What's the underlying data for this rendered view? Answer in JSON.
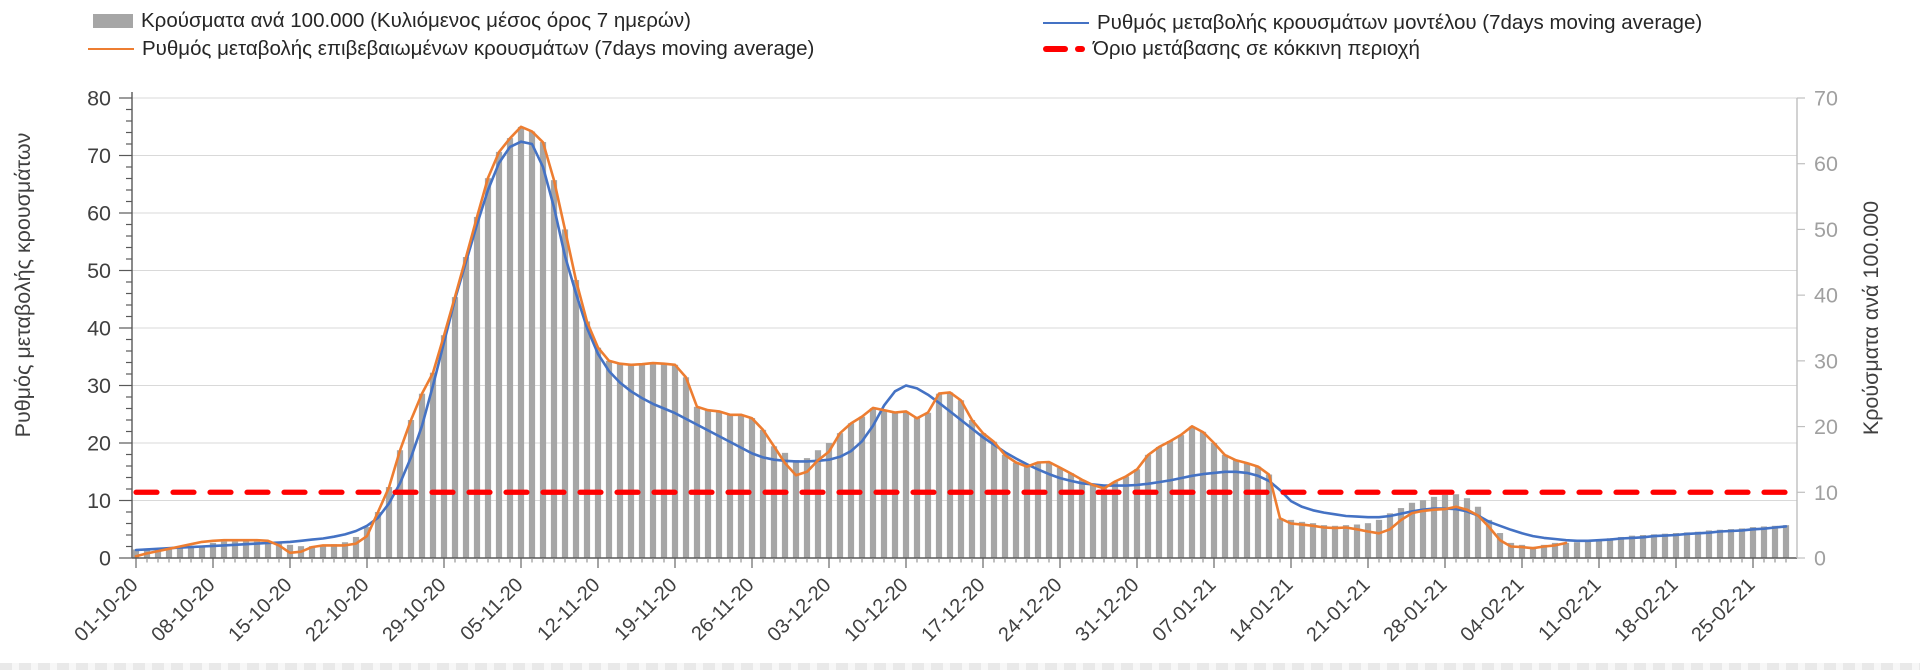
{
  "legend": {
    "cases_bars": {
      "label": "Κρούσματα ανά 100.000 (Κυλιόμενος μέσος όρος 7 ημερών)",
      "color": "#a6a6a6"
    },
    "model_line": {
      "label": "Ρυθμός μεταβολής κρουσμάτων μοντέλου (7days moving average)",
      "color": "#4472c4"
    },
    "confirmed_line": {
      "label": "Ρυθμός μεταβολής επιβεβαιωμένων κρουσμάτων (7days moving average)",
      "color": "#ed7d31"
    },
    "threshold_line": {
      "label": "Όριο μετάβασης σε κόκκινη περιοχή",
      "color": "#ff0000"
    }
  },
  "chart_data": {
    "type": "bar+line",
    "grid": "horizontal",
    "legend_position": "top",
    "x_tick_labels": [
      "01-10-20",
      "08-10-20",
      "15-10-20",
      "22-10-20",
      "29-10-20",
      "05-11-20",
      "12-11-20",
      "19-11-20",
      "26-11-20",
      "03-12-20",
      "10-12-20",
      "17-12-20",
      "24-12-20",
      "31-12-20",
      "07-01-21",
      "14-01-21",
      "21-01-21",
      "28-01-21",
      "04-02-21",
      "11-02-21",
      "18-02-21",
      "25-02-21"
    ],
    "x_minor_tick_every_days": 1,
    "x_major_tick_every_days": 7,
    "left_axis": {
      "title": "Ρυθμός μεταβολής κρουσμάτων",
      "min": 0,
      "max": 80,
      "step": 10,
      "ticks": [
        0,
        10,
        20,
        30,
        40,
        50,
        60,
        70,
        80
      ],
      "minor_step": 2,
      "tick_color": "#404040"
    },
    "right_axis": {
      "title": "Κρούσματα ανά 100.000",
      "min": 0,
      "max": 70,
      "step": 10,
      "ticks": [
        0,
        10,
        20,
        30,
        40,
        50,
        60,
        70
      ],
      "tick_color": "#a0a0a0"
    },
    "threshold": {
      "right_value": 10,
      "color": "#ff0000",
      "style": "dashed"
    },
    "series": [
      {
        "name": "Κρούσματα ανά 100.000 (Κυλιόμενος μέσος όρος 7 ημερών)",
        "type": "bar",
        "axis": "right",
        "color": "#a6a6a6",
        "values": [
          1.3,
          1.3,
          1.4,
          1.4,
          1.5,
          1.6,
          1.9,
          2.3,
          2.5,
          2.5,
          2.6,
          2.5,
          2.4,
          2.2,
          2.0,
          1.8,
          1.8,
          1.9,
          2.1,
          2.4,
          3.2,
          4.7,
          7.0,
          10.8,
          16.4,
          21.0,
          25.0,
          28.2,
          33.9,
          39.7,
          45.8,
          51.9,
          57.8,
          61.8,
          63.9,
          65.6,
          64.9,
          63.3,
          57.5,
          50.0,
          42.3,
          36.0,
          32.0,
          30.0,
          29.6,
          29.4,
          29.5,
          29.7,
          29.6,
          29.4,
          27.5,
          23.0,
          22.5,
          22.3,
          21.8,
          21.8,
          21.3,
          19.5,
          17.0,
          16.0,
          14.9,
          15.2,
          16.4,
          17.5,
          19.0,
          20.5,
          21.5,
          22.8,
          22.5,
          22.1,
          22.3,
          21.3,
          22.1,
          25.0,
          25.2,
          24.0,
          21.0,
          19.0,
          17.7,
          15.7,
          14.5,
          13.9,
          14.5,
          14.6,
          13.7,
          12.9,
          11.9,
          11.1,
          10.6,
          11.6,
          12.4,
          13.5,
          15.7,
          16.9,
          17.8,
          18.7,
          20.0,
          19.2,
          17.5,
          15.7,
          14.9,
          14.4,
          13.9,
          12.7,
          6.0,
          5.8,
          5.5,
          5.3,
          5.0,
          4.9,
          5.0,
          5.1,
          5.3,
          5.8,
          6.8,
          7.6,
          8.4,
          8.8,
          9.3,
          9.6,
          9.7,
          9.1,
          7.8,
          5.8,
          3.8,
          2.3,
          2.0,
          1.7,
          2.0,
          2.3,
          2.3,
          2.4,
          2.6,
          2.8,
          3.0,
          3.2,
          3.4,
          3.5,
          3.6,
          3.7,
          3.8,
          3.9,
          4.0,
          4.2,
          4.3,
          4.4,
          4.5,
          4.7,
          4.8,
          4.9,
          5.0
        ]
      },
      {
        "name": "Ρυθμός μεταβολής κρουσμάτων μοντέλου (7days moving average)",
        "type": "line",
        "axis": "left",
        "color": "#4472c4",
        "values": [
          1.4,
          1.5,
          1.6,
          1.7,
          1.8,
          1.9,
          2.0,
          2.1,
          2.2,
          2.3,
          2.4,
          2.5,
          2.6,
          2.7,
          2.8,
          3.0,
          3.2,
          3.4,
          3.7,
          4.1,
          4.7,
          5.6,
          7.0,
          9.5,
          13.0,
          17.5,
          23.0,
          30.0,
          37.5,
          45.0,
          51.5,
          58.0,
          64.0,
          68.7,
          71.5,
          72.4,
          72.0,
          68.0,
          61.0,
          52.5,
          46.0,
          40.0,
          35.5,
          32.5,
          30.5,
          29.0,
          27.8,
          26.8,
          26.0,
          25.2,
          24.2,
          23.2,
          22.2,
          21.2,
          20.2,
          19.2,
          18.2,
          17.5,
          17.1,
          16.9,
          16.8,
          16.8,
          16.9,
          17.1,
          17.6,
          18.6,
          20.3,
          23.0,
          26.5,
          29.0,
          30.0,
          29.5,
          28.4,
          27.0,
          25.5,
          24.0,
          22.5,
          21.0,
          19.7,
          18.4,
          17.3,
          16.3,
          15.4,
          14.6,
          13.9,
          13.4,
          13.0,
          12.8,
          12.6,
          12.6,
          12.6,
          12.7,
          12.9,
          13.2,
          13.5,
          13.9,
          14.3,
          14.6,
          14.8,
          15.0,
          15.0,
          14.8,
          14.3,
          13.4,
          11.8,
          9.9,
          8.9,
          8.3,
          7.9,
          7.6,
          7.3,
          7.2,
          7.1,
          7.1,
          7.3,
          7.7,
          8.1,
          8.4,
          8.6,
          8.6,
          8.5,
          8.1,
          7.4,
          6.3,
          5.6,
          4.9,
          4.3,
          3.8,
          3.5,
          3.3,
          3.1,
          3.0,
          3.0,
          3.1,
          3.2,
          3.4,
          3.5,
          3.6,
          3.8,
          3.9,
          4.0,
          4.2,
          4.3,
          4.4,
          4.6,
          4.7,
          4.8,
          5.0,
          5.1,
          5.3,
          5.5
        ]
      },
      {
        "name": "Ρυθμός μεταβολής επιβεβαιωμένων κρουσμάτων (7days moving average)",
        "type": "line",
        "axis": "left",
        "color": "#ed7d31",
        "values": [
          0.3,
          0.8,
          1.2,
          1.6,
          2.0,
          2.4,
          2.8,
          3.0,
          3.1,
          3.1,
          3.1,
          3.1,
          3.0,
          2.2,
          0.9,
          1.1,
          1.9,
          2.2,
          2.2,
          2.2,
          2.5,
          3.8,
          8.0,
          12.3,
          18.7,
          24.0,
          28.6,
          32.2,
          38.7,
          45.4,
          52.3,
          59.3,
          66.1,
          70.6,
          73.0,
          75.0,
          74.2,
          72.3,
          65.7,
          57.1,
          48.3,
          41.1,
          36.6,
          34.3,
          33.8,
          33.6,
          33.7,
          33.9,
          33.8,
          33.6,
          31.4,
          26.3,
          25.7,
          25.5,
          24.9,
          24.9,
          24.3,
          22.3,
          19.4,
          16.5,
          14.4,
          15.0,
          17.0,
          18.5,
          21.7,
          23.4,
          24.6,
          26.1,
          25.7,
          25.3,
          25.5,
          24.3,
          25.3,
          28.6,
          28.8,
          27.4,
          24.0,
          21.7,
          20.2,
          17.9,
          16.6,
          15.9,
          16.6,
          16.7,
          15.7,
          14.7,
          13.6,
          12.7,
          12.1,
          13.3,
          14.2,
          15.4,
          17.9,
          19.3,
          20.3,
          21.4,
          22.9,
          21.9,
          20.0,
          17.9,
          17.0,
          16.5,
          15.9,
          14.5,
          6.9,
          6.0,
          5.8,
          5.6,
          5.3,
          5.2,
          5.3,
          5.0,
          4.6,
          4.3,
          5.0,
          6.6,
          7.8,
          8.2,
          8.4,
          8.5,
          8.9,
          8.4,
          7.4,
          5.4,
          3.1,
          2.0,
          1.9,
          1.7,
          2.0,
          2.2,
          2.6,
          null,
          null,
          null,
          null,
          null,
          null,
          null,
          null,
          null,
          null,
          null,
          null,
          null,
          null,
          null,
          null,
          null,
          null,
          null,
          null
        ]
      }
    ]
  }
}
